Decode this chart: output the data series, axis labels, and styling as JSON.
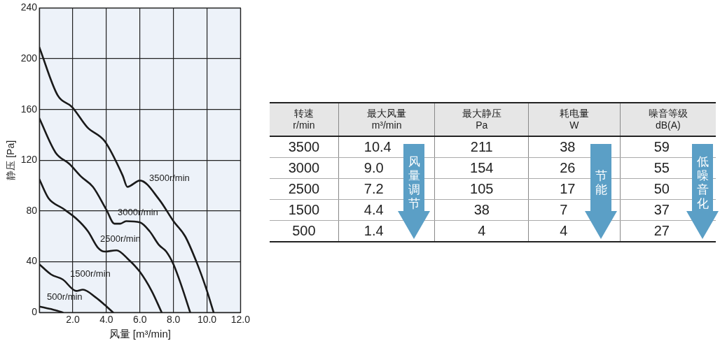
{
  "chart_data": [
    {
      "type": "line",
      "xlabel": "风量 [m³/min]",
      "ylabel": "静压 [Pa]",
      "xlim": [
        0,
        12
      ],
      "ylim": [
        0,
        240
      ],
      "xticks": [
        {
          "value": 0,
          "label": null
        },
        {
          "value": 2,
          "label": "2.0"
        },
        {
          "value": 4,
          "label": "4.0"
        },
        {
          "value": 6,
          "label": "6.0"
        },
        {
          "value": 8,
          "label": "8.0"
        },
        {
          "value": 10,
          "label": "10.0"
        },
        {
          "value": 12,
          "label": "12.0"
        }
      ],
      "yticks": [
        0,
        40,
        80,
        120,
        160,
        200,
        240
      ],
      "grid": true,
      "legend": false,
      "marker": "none",
      "line_style": "solid",
      "series": [
        {
          "name": "3500r/min",
          "color": "#1a1a1a",
          "x": [
            0,
            1.1,
            1.95,
            2.86,
            3.9,
            4.97,
            5.25,
            6.0,
            7.15,
            8.0,
            8.7,
            9.4,
            9.95,
            10.4
          ],
          "values": [
            209,
            171,
            162,
            146,
            135,
            108,
            99,
            104,
            89,
            72,
            60,
            39,
            19,
            0
          ]
        },
        {
          "name": "3000r/min",
          "color": "#1a1a1a",
          "x": [
            0,
            0.97,
            1.8,
            2.5,
            3.2,
            4.0,
            4.48,
            4.83,
            5.18,
            6.0,
            6.58,
            7.15,
            7.57,
            8.0,
            8.48,
            9.0
          ],
          "values": [
            153,
            126,
            117,
            107,
            99,
            81,
            70,
            70,
            72,
            71,
            64,
            53,
            48,
            38,
            21,
            0
          ]
        },
        {
          "name": "2500r/min",
          "color": "#1a1a1a",
          "x": [
            0,
            0.55,
            1.4,
            2.2,
            2.9,
            3.5,
            3.9,
            4.6,
            5.3,
            6.0,
            6.7,
            7.3
          ],
          "values": [
            105,
            90,
            82,
            74,
            64,
            51,
            48,
            49,
            42,
            32,
            17,
            0
          ]
        },
        {
          "name": "1500r/min",
          "color": "#1a1a1a",
          "x": [
            0,
            0.7,
            1.4,
            2.2,
            2.6,
            3.35,
            3.9,
            4.4
          ],
          "values": [
            38,
            30,
            26,
            17,
            18,
            12,
            6,
            0
          ]
        },
        {
          "name": "500r/min",
          "color": "#1a1a1a",
          "x": [
            0,
            0.8,
            1.4
          ],
          "values": [
            4.7,
            2.3,
            0
          ]
        }
      ]
    },
    {
      "type": "other",
      "annotations": [
        "转速\nr/min",
        "最大风量\nm³/min",
        "最大静压\nPa",
        "耗电量\nW",
        "噪音等级\ndB(A)",
        "3500",
        "10.4",
        "211",
        "38",
        "59",
        "3000",
        "9.0",
        "154",
        "26",
        "55",
        "2500",
        "7.2",
        "105",
        "17",
        "50",
        "1500",
        "4.4",
        "38",
        "7",
        "37",
        "500",
        "1.4",
        "4",
        "4",
        "27",
        "风量调节",
        "节能",
        "低噪音化"
      ]
    }
  ]
}
